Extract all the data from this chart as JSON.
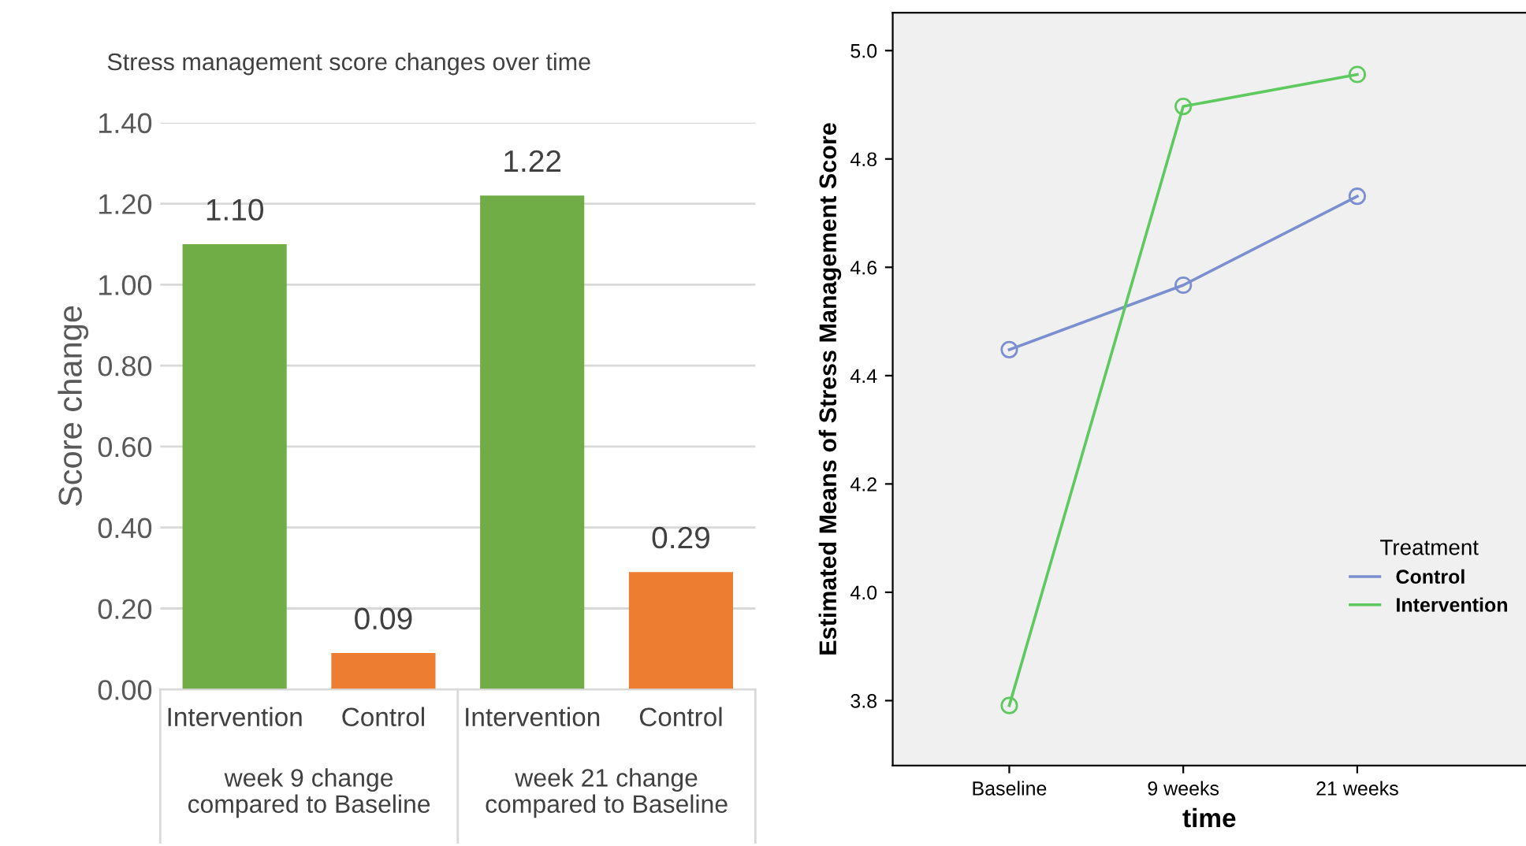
{
  "chart_data": [
    {
      "type": "bar",
      "title": "Stress management score changes over time",
      "ylabel": "Score change",
      "categories": [
        "Intervention",
        "Control",
        "Intervention",
        "Control"
      ],
      "values": [
        1.1,
        0.09,
        1.22,
        0.29
      ],
      "colors": [
        "#70ad47",
        "#ed7d31",
        "#70ad47",
        "#ed7d31"
      ],
      "annotations": [
        "week 9 change\ncompared to Baseline",
        "week 21 change\ncompared to Baseline"
      ],
      "ylim": [
        0,
        1.4
      ],
      "yticks": [
        {
          "value": 0,
          "label": "0.00"
        },
        {
          "value": 0.2,
          "label": "0.20"
        },
        {
          "value": 0.4,
          "label": "0.40"
        },
        {
          "value": 0.6,
          "label": "0.60"
        },
        {
          "value": 0.8,
          "label": "0.80"
        },
        {
          "value": 1.0,
          "label": "1.00"
        },
        {
          "value": 1.2,
          "label": "1.20"
        },
        {
          "value": 1.4,
          "label": "1.40"
        }
      ],
      "value_labels": [
        "1.10",
        "0.09",
        "1.22",
        "0.29"
      ],
      "grid": "y"
    },
    {
      "type": "line",
      "xlabel": "time",
      "ylabel": "Estimated Means of Stress Management Score",
      "legend_title": "Treatment",
      "categories": [
        "Baseline",
        "9 weeks",
        "21 weeks"
      ],
      "series": [
        {
          "name": "Control",
          "color": "#7b8fd0",
          "values": [
            4.448,
            4.567,
            4.731
          ]
        },
        {
          "name": "Intervention",
          "color": "#5ec95e",
          "values": [
            3.791,
            4.897,
            4.956
          ]
        }
      ],
      "ylim": [
        3.68,
        5.07
      ],
      "yticks": [
        {
          "value": 3.8,
          "label": "3.8"
        },
        {
          "value": 4.0,
          "label": "4.0"
        },
        {
          "value": 4.2,
          "label": "4.2"
        },
        {
          "value": 4.4,
          "label": "4.4"
        },
        {
          "value": 4.6,
          "label": "4.6"
        },
        {
          "value": 4.8,
          "label": "4.8"
        },
        {
          "value": 5.0,
          "label": "5.0"
        }
      ],
      "grid": false,
      "legend": "right",
      "marker": "circle",
      "line_style": "solid"
    }
  ]
}
